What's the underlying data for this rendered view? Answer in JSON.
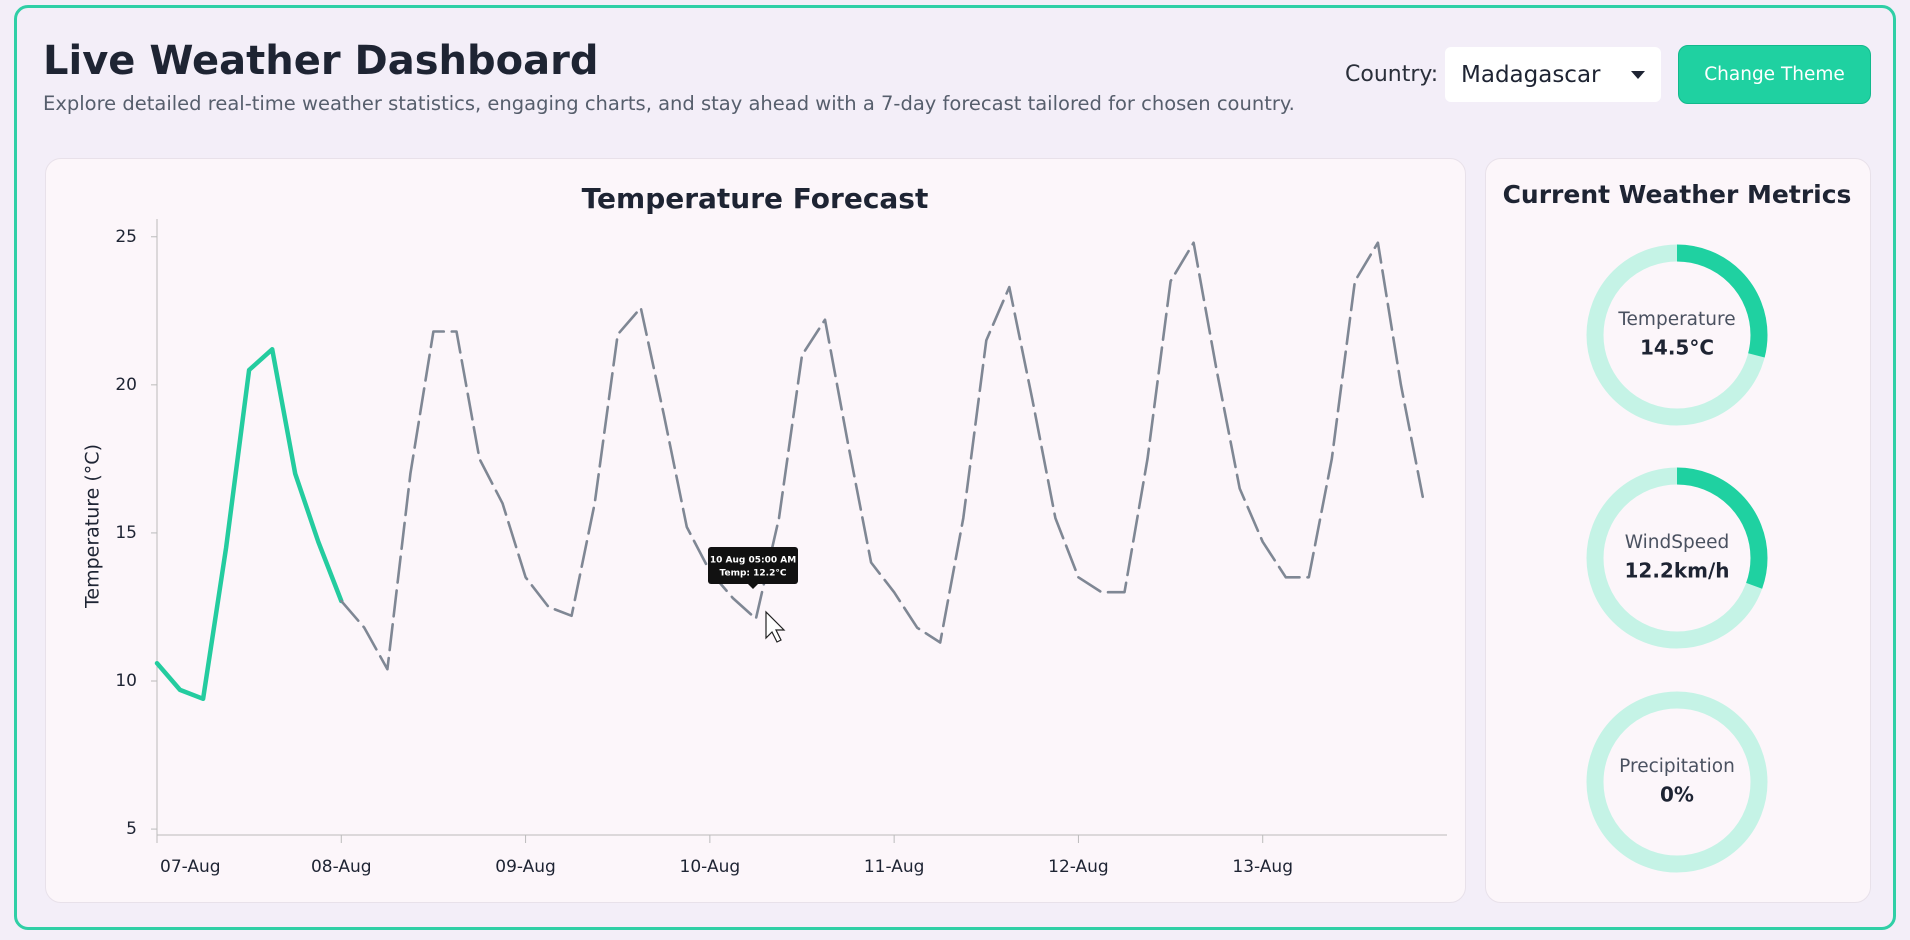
{
  "header": {
    "title": "Live Weather Dashboard",
    "subtitle": "Explore detailed real-time weather statistics, engaging charts, and stay ahead with a 7-day forecast tailored for chosen country."
  },
  "controls": {
    "country_label": "Country:",
    "country": "Madagascar",
    "button": "Change Theme"
  },
  "chart_data": {
    "type": "line",
    "title": "Temperature Forecast",
    "y_label": "Temperature (°C)",
    "categories": [
      "07-Aug",
      null,
      null,
      null,
      null,
      null,
      null,
      null,
      "08-Aug",
      null,
      null,
      null,
      null,
      null,
      null,
      null,
      "09-Aug",
      null,
      null,
      null,
      null,
      null,
      null,
      null,
      "10-Aug",
      null,
      null,
      null,
      null,
      null,
      null,
      null,
      "11-Aug",
      null,
      null,
      null,
      null,
      null,
      null,
      null,
      "12-Aug",
      null,
      null,
      null,
      null,
      null,
      null,
      null,
      "13-Aug",
      null,
      null,
      null,
      null,
      null,
      null,
      null
    ],
    "series": [
      {
        "color": "#24cc9f",
        "dashed": false,
        "values": [
          10.6,
          9.7,
          9.4,
          14.5,
          20.5,
          21.2,
          17,
          14.7,
          12.7,
          null,
          null,
          null,
          null,
          null,
          null,
          null,
          null,
          null,
          null,
          null,
          null,
          null,
          null,
          null,
          null,
          null,
          null,
          null,
          null,
          null,
          null,
          null,
          null,
          null,
          null,
          null,
          null,
          null,
          null,
          null,
          null,
          null,
          null,
          null,
          null,
          null,
          null,
          null,
          null,
          null,
          null,
          null,
          null,
          null,
          null,
          null
        ]
      },
      {
        "color": "#7f8794",
        "dashed": true,
        "values": [
          null,
          null,
          null,
          null,
          null,
          null,
          null,
          null,
          12.7,
          11.8,
          10.4,
          17,
          21.8,
          21.8,
          17.5,
          16,
          13.5,
          12.5,
          12.2,
          16,
          21.7,
          22.6,
          19,
          15.2,
          13.7,
          12.8,
          12.1,
          15.5,
          21,
          22.2,
          18,
          14,
          13,
          11.8,
          11.3,
          15.5,
          21.5,
          23.3,
          19.5,
          15.5,
          13.5,
          13,
          13,
          17.5,
          23.5,
          24.8,
          20.5,
          16.5,
          14.7,
          13.5,
          13.5,
          17.5,
          23.5,
          24.8,
          20,
          16
        ]
      }
    ],
    "ylim": [
      4.8,
      25.6
    ],
    "yticks": [
      5,
      10,
      15,
      20,
      25
    ],
    "tooltip": [
      "10 Aug 05:00 AM",
      "Temp: 12.2°C"
    ]
  },
  "metrics": {
    "title": "Current Weather Metrics",
    "items": [
      {
        "label": "Temperature",
        "value": 14.5,
        "value_label": "14.5°C",
        "range": [
          0,
          50
        ]
      },
      {
        "label": "WindSpeed",
        "value": 12.2,
        "value_label": "12.2km/h",
        "range": [
          0,
          40
        ]
      },
      {
        "label": "Precipitation",
        "value": 0,
        "value_label": "0%",
        "range": [
          0,
          100
        ]
      }
    ],
    "color": "#1fd1a1",
    "track_color": "#c5f3e6"
  }
}
